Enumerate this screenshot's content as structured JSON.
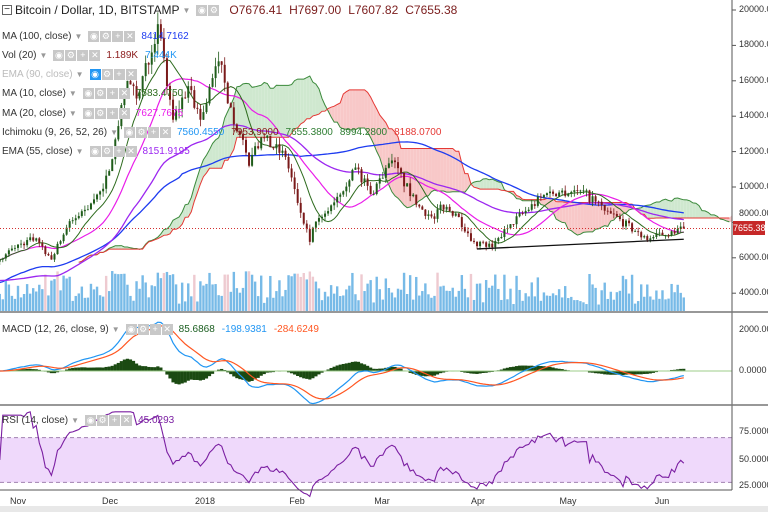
{
  "header": {
    "symbol": "Bitcoin / Dollar, 1D, BITSTAMP",
    "open": "O7676.41",
    "high": "H7697.00",
    "low": "L7607.82",
    "close": "C7655.38"
  },
  "indicators": [
    {
      "label": "MA (100, close)",
      "values": [
        "8414.7162"
      ],
      "colors": [
        "#1e3cf0"
      ]
    },
    {
      "label": "Vol (20)",
      "values": [
        "1.189K",
        "7.444K"
      ],
      "colors": [
        "#8b1a1a",
        "#2196f3"
      ]
    },
    {
      "label": "EMA (90, close)",
      "values": [],
      "colors": [],
      "hidden": true
    },
    {
      "label": "MA (10, close)",
      "values": [
        "7583.4750"
      ],
      "colors": [
        "#2e6b1e"
      ]
    },
    {
      "label": "MA (20, close)",
      "values": [
        "7627.7675"
      ],
      "colors": [
        "#e91ee9"
      ]
    },
    {
      "label": "Ichimoku (9, 26, 52, 26)",
      "values": [
        "7560.4550",
        "7953.9000",
        "7655.3800",
        "8994.2800",
        "8188.0700"
      ],
      "colors": [
        "#2196f3",
        "#8b1a1a",
        "#2e7d32",
        "#2e7d32",
        "#e53935"
      ]
    },
    {
      "label": "EMA (55, close)",
      "values": [
        "8151.9195"
      ],
      "colors": [
        "#9c27f0"
      ]
    }
  ],
  "macd": {
    "label": "MACD (12, 26, close, 9)",
    "values": [
      "85.6868",
      "-198.9381",
      "-284.6249"
    ],
    "colors": [
      "#1b5e20",
      "#2196f3",
      "#ff5722"
    ]
  },
  "rsi": {
    "label": "RSI (14, close)",
    "values": [
      "45.0293"
    ],
    "colors": [
      "#7b1fa2"
    ]
  },
  "price_axis": [
    "20000.00",
    "18000.00",
    "16000.00",
    "14000.00",
    "12000.00",
    "10000.00",
    "8000.00",
    "6000.00",
    "4000.00"
  ],
  "macd_axis": [
    "2000.0000",
    "0.0000"
  ],
  "rsi_axis": [
    "75.0000",
    "50.0000",
    "25.0000"
  ],
  "time_axis": [
    "Nov",
    "Dec",
    "2018",
    "Feb",
    "Mar",
    "Apr",
    "May",
    "Jun"
  ],
  "last_price": "7655.38",
  "colors": {
    "up": "#1f5c1a",
    "down": "#7a1a1a",
    "cloud_bull": "#cfe8cf",
    "cloud_bear": "#f8c8c8",
    "volume": "#4aa3df",
    "rsi_band": "#efd9fb"
  },
  "chart_data": {
    "type": "candlestick",
    "symbol": "BTC/USD",
    "interval": "1D",
    "ylim": [
      3000,
      20500
    ],
    "close_points": [
      [
        "2017-10-26",
        5900
      ],
      [
        "2017-11-01",
        6750
      ],
      [
        "2017-11-07",
        7100
      ],
      [
        "2017-11-12",
        5900
      ],
      [
        "2017-11-17",
        7700
      ],
      [
        "2017-11-26",
        9300
      ],
      [
        "2017-11-29",
        9900
      ],
      [
        "2017-12-01",
        10900
      ],
      [
        "2017-12-07",
        16000
      ],
      [
        "2017-12-10",
        15000
      ],
      [
        "2017-12-17",
        19200
      ],
      [
        "2017-12-22",
        13800
      ],
      [
        "2017-12-27",
        15700
      ],
      [
        "2017-12-31",
        13800
      ],
      [
        "2018-01-06",
        17100
      ],
      [
        "2018-01-10",
        14500
      ],
      [
        "2018-01-16",
        11200
      ],
      [
        "2018-01-20",
        12800
      ],
      [
        "2018-01-28",
        11700
      ],
      [
        "2018-02-01",
        9100
      ],
      [
        "2018-02-05",
        6900
      ],
      [
        "2018-02-06",
        7700
      ],
      [
        "2018-02-10",
        8500
      ],
      [
        "2018-02-20",
        11100
      ],
      [
        "2018-02-25",
        9600
      ],
      [
        "2018-03-04",
        11500
      ],
      [
        "2018-03-12",
        9000
      ],
      [
        "2018-03-18",
        8200
      ],
      [
        "2018-03-20",
        9000
      ],
      [
        "2018-03-25",
        8500
      ],
      [
        "2018-03-31",
        6900
      ],
      [
        "2018-04-06",
        6600
      ],
      [
        "2018-04-12",
        7900
      ],
      [
        "2018-04-24",
        9650
      ],
      [
        "2018-05-05",
        9800
      ],
      [
        "2018-05-15",
        8500
      ],
      [
        "2018-05-23",
        7500
      ],
      [
        "2018-05-28",
        7100
      ],
      [
        "2018-06-04",
        7500
      ],
      [
        "2018-06-08",
        7655.38
      ]
    ],
    "trendline": [
      [
        "2018-04-01",
        6500
      ],
      [
        "2018-06-08",
        7050
      ]
    ],
    "macd_ylim": [
      -1500,
      2800
    ],
    "rsi_ylim": [
      20,
      95
    ],
    "rsi_bands": [
      70,
      30
    ]
  }
}
